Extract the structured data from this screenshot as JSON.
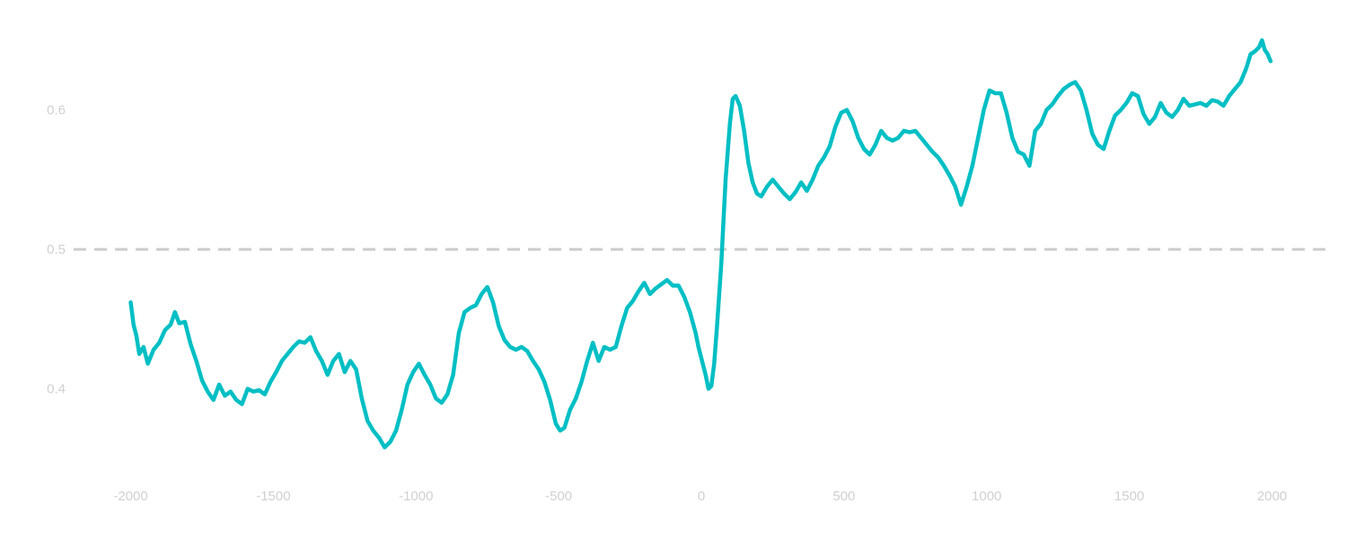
{
  "chart_data": {
    "type": "line",
    "title": "",
    "xlabel": "",
    "ylabel": "",
    "xlim": [
      -2200,
      2200
    ],
    "ylim": [
      0.338,
      0.666
    ],
    "x_ticks": [
      -2000,
      -1500,
      -1000,
      -500,
      0,
      500,
      1000,
      1500,
      2000
    ],
    "x_tick_labels": [
      "-2000",
      "-1500",
      "-1000",
      "-500",
      "0",
      "500",
      "1000",
      "1500",
      "2000"
    ],
    "y_ticks": [
      0.4,
      0.5,
      0.6
    ],
    "y_tick_labels": [
      "0.4",
      "0.5",
      "0.6"
    ],
    "grid": false,
    "legend": "none",
    "reference_line": {
      "y": 0.5,
      "style": "dashed",
      "color": "#cccccc"
    },
    "series": [
      {
        "color": "#00bfc4",
        "points": [
          [
            -2000,
            0.462
          ],
          [
            -1990,
            0.446
          ],
          [
            -1980,
            0.438
          ],
          [
            -1970,
            0.425
          ],
          [
            -1955,
            0.43
          ],
          [
            -1940,
            0.418
          ],
          [
            -1920,
            0.428
          ],
          [
            -1900,
            0.433
          ],
          [
            -1880,
            0.442
          ],
          [
            -1860,
            0.446
          ],
          [
            -1845,
            0.455
          ],
          [
            -1830,
            0.447
          ],
          [
            -1810,
            0.448
          ],
          [
            -1790,
            0.432
          ],
          [
            -1770,
            0.42
          ],
          [
            -1750,
            0.406
          ],
          [
            -1730,
            0.398
          ],
          [
            -1710,
            0.392
          ],
          [
            -1690,
            0.403
          ],
          [
            -1670,
            0.395
          ],
          [
            -1650,
            0.398
          ],
          [
            -1630,
            0.392
          ],
          [
            -1610,
            0.389
          ],
          [
            -1590,
            0.4
          ],
          [
            -1570,
            0.398
          ],
          [
            -1550,
            0.399
          ],
          [
            -1530,
            0.396
          ],
          [
            -1510,
            0.405
          ],
          [
            -1490,
            0.412
          ],
          [
            -1470,
            0.42
          ],
          [
            -1450,
            0.425
          ],
          [
            -1430,
            0.43
          ],
          [
            -1410,
            0.434
          ],
          [
            -1390,
            0.433
          ],
          [
            -1370,
            0.437
          ],
          [
            -1350,
            0.427
          ],
          [
            -1330,
            0.42
          ],
          [
            -1310,
            0.41
          ],
          [
            -1290,
            0.42
          ],
          [
            -1270,
            0.425
          ],
          [
            -1250,
            0.412
          ],
          [
            -1230,
            0.42
          ],
          [
            -1210,
            0.414
          ],
          [
            -1190,
            0.393
          ],
          [
            -1170,
            0.377
          ],
          [
            -1150,
            0.37
          ],
          [
            -1130,
            0.365
          ],
          [
            -1110,
            0.358
          ],
          [
            -1090,
            0.362
          ],
          [
            -1070,
            0.37
          ],
          [
            -1050,
            0.385
          ],
          [
            -1030,
            0.403
          ],
          [
            -1010,
            0.412
          ],
          [
            -990,
            0.418
          ],
          [
            -970,
            0.41
          ],
          [
            -950,
            0.403
          ],
          [
            -930,
            0.393
          ],
          [
            -910,
            0.39
          ],
          [
            -890,
            0.396
          ],
          [
            -870,
            0.41
          ],
          [
            -850,
            0.44
          ],
          [
            -830,
            0.455
          ],
          [
            -810,
            0.458
          ],
          [
            -790,
            0.46
          ],
          [
            -770,
            0.468
          ],
          [
            -750,
            0.473
          ],
          [
            -730,
            0.462
          ],
          [
            -710,
            0.445
          ],
          [
            -690,
            0.435
          ],
          [
            -670,
            0.43
          ],
          [
            -650,
            0.428
          ],
          [
            -630,
            0.43
          ],
          [
            -610,
            0.427
          ],
          [
            -590,
            0.42
          ],
          [
            -570,
            0.414
          ],
          [
            -550,
            0.405
          ],
          [
            -530,
            0.392
          ],
          [
            -510,
            0.375
          ],
          [
            -495,
            0.37
          ],
          [
            -480,
            0.372
          ],
          [
            -460,
            0.385
          ],
          [
            -440,
            0.393
          ],
          [
            -420,
            0.405
          ],
          [
            -400,
            0.42
          ],
          [
            -380,
            0.433
          ],
          [
            -360,
            0.42
          ],
          [
            -340,
            0.43
          ],
          [
            -320,
            0.428
          ],
          [
            -300,
            0.43
          ],
          [
            -280,
            0.445
          ],
          [
            -260,
            0.458
          ],
          [
            -240,
            0.463
          ],
          [
            -220,
            0.47
          ],
          [
            -200,
            0.476
          ],
          [
            -180,
            0.468
          ],
          [
            -160,
            0.472
          ],
          [
            -140,
            0.475
          ],
          [
            -120,
            0.478
          ],
          [
            -100,
            0.474
          ],
          [
            -80,
            0.474
          ],
          [
            -60,
            0.466
          ],
          [
            -40,
            0.455
          ],
          [
            -20,
            0.44
          ],
          [
            -10,
            0.43
          ],
          [
            0,
            0.422
          ],
          [
            15,
            0.41
          ],
          [
            25,
            0.4
          ],
          [
            35,
            0.402
          ],
          [
            45,
            0.418
          ],
          [
            55,
            0.445
          ],
          [
            70,
            0.49
          ],
          [
            85,
            0.55
          ],
          [
            100,
            0.59
          ],
          [
            110,
            0.608
          ],
          [
            120,
            0.61
          ],
          [
            135,
            0.603
          ],
          [
            150,
            0.585
          ],
          [
            165,
            0.562
          ],
          [
            180,
            0.548
          ],
          [
            195,
            0.54
          ],
          [
            210,
            0.538
          ],
          [
            230,
            0.545
          ],
          [
            250,
            0.55
          ],
          [
            270,
            0.545
          ],
          [
            290,
            0.54
          ],
          [
            310,
            0.536
          ],
          [
            330,
            0.541
          ],
          [
            350,
            0.548
          ],
          [
            370,
            0.542
          ],
          [
            390,
            0.55
          ],
          [
            410,
            0.56
          ],
          [
            430,
            0.566
          ],
          [
            450,
            0.574
          ],
          [
            470,
            0.588
          ],
          [
            490,
            0.598
          ],
          [
            510,
            0.6
          ],
          [
            530,
            0.592
          ],
          [
            550,
            0.58
          ],
          [
            570,
            0.572
          ],
          [
            590,
            0.568
          ],
          [
            610,
            0.575
          ],
          [
            630,
            0.585
          ],
          [
            650,
            0.58
          ],
          [
            670,
            0.578
          ],
          [
            690,
            0.58
          ],
          [
            710,
            0.585
          ],
          [
            730,
            0.584
          ],
          [
            750,
            0.585
          ],
          [
            770,
            0.58
          ],
          [
            790,
            0.575
          ],
          [
            810,
            0.57
          ],
          [
            830,
            0.566
          ],
          [
            850,
            0.56
          ],
          [
            870,
            0.553
          ],
          [
            890,
            0.545
          ],
          [
            910,
            0.532
          ],
          [
            930,
            0.545
          ],
          [
            950,
            0.56
          ],
          [
            970,
            0.58
          ],
          [
            990,
            0.6
          ],
          [
            1010,
            0.614
          ],
          [
            1030,
            0.612
          ],
          [
            1050,
            0.612
          ],
          [
            1070,
            0.598
          ],
          [
            1090,
            0.58
          ],
          [
            1110,
            0.57
          ],
          [
            1130,
            0.568
          ],
          [
            1150,
            0.56
          ],
          [
            1170,
            0.585
          ],
          [
            1190,
            0.59
          ],
          [
            1210,
            0.6
          ],
          [
            1230,
            0.604
          ],
          [
            1250,
            0.61
          ],
          [
            1270,
            0.615
          ],
          [
            1290,
            0.618
          ],
          [
            1310,
            0.62
          ],
          [
            1330,
            0.614
          ],
          [
            1350,
            0.6
          ],
          [
            1370,
            0.583
          ],
          [
            1390,
            0.575
          ],
          [
            1410,
            0.572
          ],
          [
            1430,
            0.585
          ],
          [
            1450,
            0.596
          ],
          [
            1470,
            0.6
          ],
          [
            1490,
            0.605
          ],
          [
            1510,
            0.612
          ],
          [
            1530,
            0.61
          ],
          [
            1550,
            0.597
          ],
          [
            1570,
            0.59
          ],
          [
            1590,
            0.595
          ],
          [
            1610,
            0.605
          ],
          [
            1630,
            0.598
          ],
          [
            1650,
            0.595
          ],
          [
            1670,
            0.6
          ],
          [
            1690,
            0.608
          ],
          [
            1710,
            0.603
          ],
          [
            1730,
            0.604
          ],
          [
            1750,
            0.605
          ],
          [
            1770,
            0.603
          ],
          [
            1790,
            0.607
          ],
          [
            1810,
            0.606
          ],
          [
            1830,
            0.603
          ],
          [
            1850,
            0.61
          ],
          [
            1870,
            0.615
          ],
          [
            1890,
            0.62
          ],
          [
            1910,
            0.63
          ],
          [
            1925,
            0.64
          ],
          [
            1940,
            0.642
          ],
          [
            1955,
            0.645
          ],
          [
            1965,
            0.65
          ],
          [
            1975,
            0.643
          ],
          [
            1985,
            0.64
          ],
          [
            1995,
            0.635
          ]
        ]
      }
    ]
  }
}
